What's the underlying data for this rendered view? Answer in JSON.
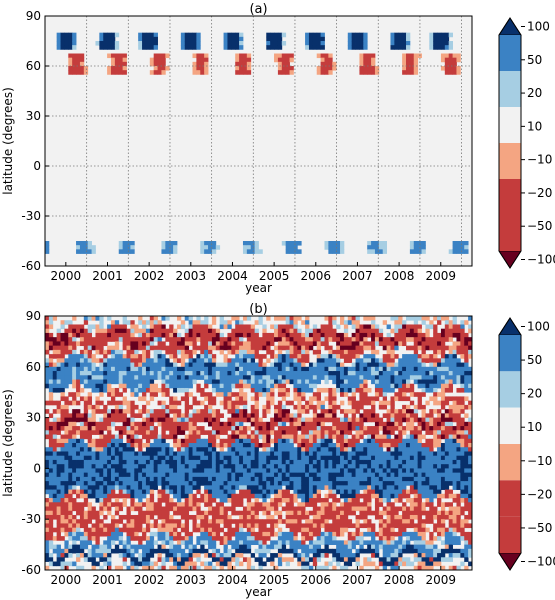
{
  "palette": [
    "#67001f",
    "#c43c3c",
    "#f4a582",
    "#f2f2f2",
    "#a6cee3",
    "#3b82c4",
    "#08306b"
  ],
  "chart_data": [
    {
      "type": "heatmap",
      "title": "(a)",
      "xlabel": "year",
      "ylabel": "latitude (degrees)",
      "xlim": [
        1999.5,
        2009.75
      ],
      "ylim": [
        -60,
        90
      ],
      "x_ticks": [
        "2000",
        "2001",
        "2002",
        "2003",
        "2004",
        "2005",
        "2006",
        "2007",
        "2008",
        "2009"
      ],
      "y_ticks": [
        "90",
        "60",
        "30",
        "0",
        "-30",
        "-60"
      ],
      "grid": true,
      "colorbar": {
        "extend": "both",
        "bounds": [
          -100,
          -50,
          -20,
          -10,
          10,
          20,
          50,
          100
        ],
        "tick_labels": [
          "100",
          "50",
          "20",
          "10",
          "−10",
          "−20",
          "−50",
          "−100"
        ]
      },
      "fields": [
        {
          "lat": [
            80,
            70
          ],
          "amp": 85,
          "seasonal": 55,
          "phase": 0.0
        },
        {
          "lat": [
            68,
            55
          ],
          "amp": 30,
          "seasonal": -35,
          "phase": 0.25
        },
        {
          "lat": [
            -44,
            -52
          ],
          "amp": 30,
          "seasonal": 15,
          "phase": 0.45
        }
      ]
    },
    {
      "type": "heatmap",
      "title": "(b)",
      "xlabel": "year",
      "ylabel": "latitude (degrees)",
      "xlim": [
        1999.5,
        2009.75
      ],
      "ylim": [
        -60,
        90
      ],
      "x_ticks": [
        "2000",
        "2001",
        "2002",
        "2003",
        "2004",
        "2005",
        "2006",
        "2007",
        "2008",
        "2009"
      ],
      "y_ticks": [
        "90",
        "60",
        "30",
        "0",
        "-30",
        "-60"
      ],
      "grid": false,
      "colorbar": {
        "extend": "both",
        "bounds": [
          -100,
          -50,
          -20,
          -10,
          10,
          20,
          50,
          100
        ],
        "tick_labels": [
          "100",
          "50",
          "20",
          "10",
          "−10",
          "−20",
          "−50",
          "−100"
        ]
      },
      "bands": [
        {
          "lat": [
            82,
            73
          ],
          "value": -40
        },
        {
          "lat": [
            72,
            66
          ],
          "value": -25
        },
        {
          "lat": [
            64,
            48
          ],
          "value": 35
        },
        {
          "lat": [
            47,
            33
          ],
          "value": -15
        },
        {
          "lat": [
            31,
            24
          ],
          "value": -40
        },
        {
          "lat": [
            22,
            15
          ],
          "value": -30
        },
        {
          "lat": [
            14,
            -15
          ],
          "value": 45
        },
        {
          "lat": [
            -16,
            -40
          ],
          "value": -25
        },
        {
          "lat": [
            -41,
            -49
          ],
          "value": 25
        },
        {
          "lat": [
            -50,
            -53
          ],
          "value": 80
        }
      ]
    }
  ]
}
